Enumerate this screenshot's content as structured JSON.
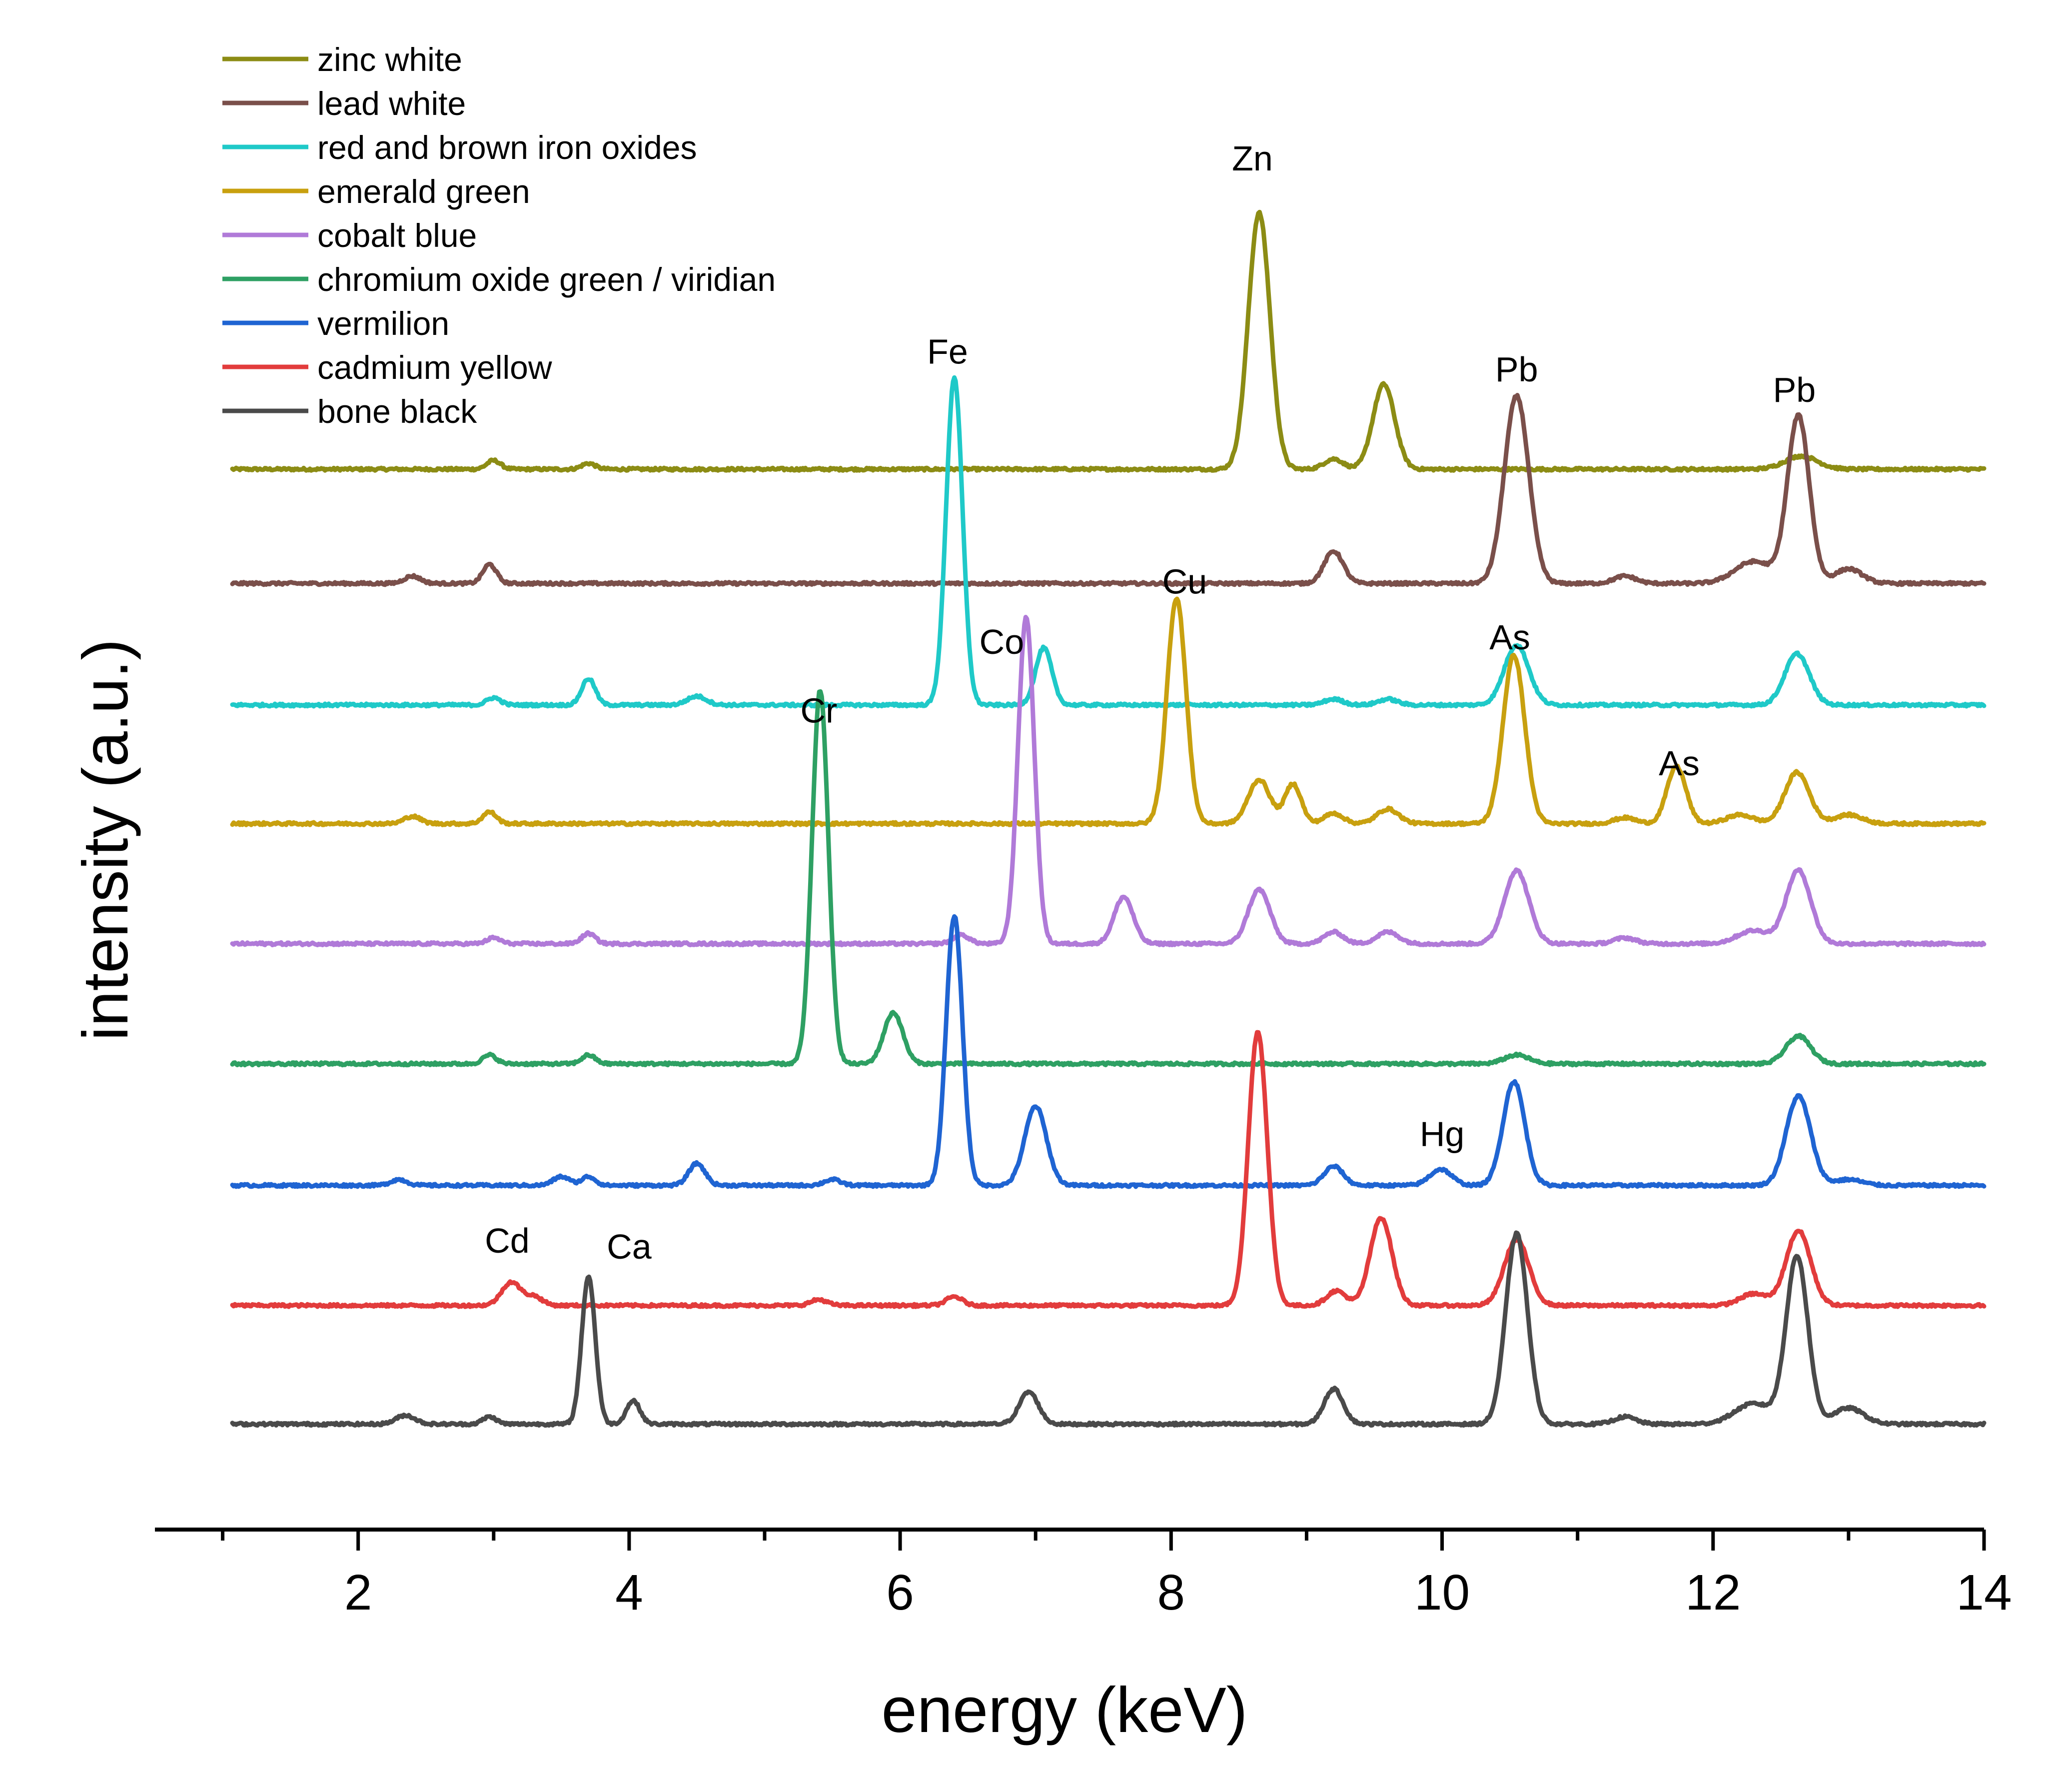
{
  "chart_data": {
    "type": "line",
    "title": "",
    "xlabel": "energy (keV)",
    "ylabel": "intensity (a.u.)",
    "xlim": [
      0.5,
      14
    ],
    "ylim": [
      0,
      100
    ],
    "x_ticks": [
      2,
      4,
      6,
      8,
      10,
      12,
      14
    ],
    "x_tick_labels": [
      "2",
      "4",
      "6",
      "8",
      "10",
      "12",
      "14"
    ],
    "y_ticks_shown": false,
    "legend_position": "top-left",
    "series": [
      {
        "name": "zinc white",
        "color": "#8c8c14",
        "baseline": 72.4,
        "scale": 1.0,
        "peaks": [
          [
            3.0,
            0.6,
            0.05
          ],
          [
            3.7,
            0.4,
            0.05
          ],
          [
            8.65,
            17.5,
            0.08
          ],
          [
            9.2,
            0.7,
            0.07
          ],
          [
            9.57,
            5.8,
            0.08
          ],
          [
            12.65,
            0.9,
            0.12
          ]
        ]
      },
      {
        "name": "lead white",
        "color": "#7a4f4a",
        "baseline": 64.6,
        "scale": 1.0,
        "peaks": [
          [
            2.4,
            0.5,
            0.06
          ],
          [
            2.97,
            1.3,
            0.05
          ],
          [
            9.2,
            2.2,
            0.07
          ],
          [
            10.55,
            12.8,
            0.09
          ],
          [
            11.35,
            0.5,
            0.08
          ],
          [
            12.3,
            1.5,
            0.14
          ],
          [
            12.63,
            11.4,
            0.08
          ],
          [
            13.0,
            1.0,
            0.1
          ]
        ]
      },
      {
        "name": "red and brown iron oxides",
        "color": "#1fc9c8",
        "baseline": 56.3,
        "scale": 1.0,
        "peaks": [
          [
            3.0,
            0.5,
            0.05
          ],
          [
            3.7,
            1.8,
            0.05
          ],
          [
            4.5,
            0.6,
            0.07
          ],
          [
            6.4,
            22.4,
            0.06
          ],
          [
            7.06,
            3.9,
            0.06
          ],
          [
            9.2,
            0.4,
            0.07
          ],
          [
            9.6,
            0.4,
            0.07
          ],
          [
            10.55,
            4.1,
            0.09
          ],
          [
            12.62,
            3.5,
            0.09
          ]
        ]
      },
      {
        "name": "emerald green",
        "color": "#c8a00f",
        "baseline": 48.2,
        "scale": 1.0,
        "peaks": [
          [
            2.4,
            0.5,
            0.06
          ],
          [
            2.97,
            0.8,
            0.05
          ],
          [
            8.04,
            15.4,
            0.07
          ],
          [
            8.65,
            3.0,
            0.08
          ],
          [
            8.9,
            2.7,
            0.06
          ],
          [
            9.2,
            0.7,
            0.07
          ],
          [
            9.6,
            1.0,
            0.08
          ],
          [
            10.53,
            11.5,
            0.08
          ],
          [
            11.35,
            0.4,
            0.08
          ],
          [
            11.73,
            3.9,
            0.07
          ],
          [
            12.2,
            0.6,
            0.1
          ],
          [
            12.62,
            3.5,
            0.09
          ],
          [
            13.0,
            0.6,
            0.1
          ]
        ]
      },
      {
        "name": "cobalt blue",
        "color": "#b07ad8",
        "baseline": 40.0,
        "scale": 1.0,
        "peaks": [
          [
            3.0,
            0.4,
            0.05
          ],
          [
            3.7,
            0.7,
            0.05
          ],
          [
            6.45,
            0.6,
            0.06
          ],
          [
            6.93,
            22.3,
            0.06
          ],
          [
            7.65,
            3.2,
            0.07
          ],
          [
            8.65,
            3.7,
            0.08
          ],
          [
            9.2,
            0.8,
            0.07
          ],
          [
            9.6,
            0.8,
            0.08
          ],
          [
            10.55,
            5.0,
            0.09
          ],
          [
            11.35,
            0.4,
            0.08
          ],
          [
            12.3,
            0.9,
            0.12
          ],
          [
            12.63,
            5.0,
            0.09
          ]
        ]
      },
      {
        "name": "chromium oxide green / viridian",
        "color": "#2ea063",
        "baseline": 31.8,
        "scale": 1.0,
        "peaks": [
          [
            2.97,
            0.6,
            0.05
          ],
          [
            3.7,
            0.6,
            0.05
          ],
          [
            5.41,
            25.5,
            0.06
          ],
          [
            5.95,
            3.5,
            0.07
          ],
          [
            10.55,
            0.6,
            0.09
          ],
          [
            12.63,
            1.9,
            0.09
          ]
        ]
      },
      {
        "name": "vermilion",
        "color": "#1f64d2",
        "baseline": 23.5,
        "scale": 1.0,
        "peaks": [
          [
            2.3,
            0.4,
            0.06
          ],
          [
            3.5,
            0.6,
            0.06
          ],
          [
            3.7,
            0.6,
            0.05
          ],
          [
            4.5,
            1.5,
            0.06
          ],
          [
            5.5,
            0.4,
            0.06
          ],
          [
            6.4,
            18.4,
            0.06
          ],
          [
            7.0,
            5.4,
            0.08
          ],
          [
            9.2,
            1.3,
            0.07
          ],
          [
            9.99,
            1.1,
            0.08
          ],
          [
            10.53,
            7.1,
            0.08
          ],
          [
            12.63,
            6.1,
            0.09
          ],
          [
            13.0,
            0.4,
            0.1
          ]
        ]
      },
      {
        "name": "cadmium yellow",
        "color": "#e23c3c",
        "baseline": 15.3,
        "scale": 1.0,
        "peaks": [
          [
            3.13,
            1.6,
            0.07
          ],
          [
            3.3,
            0.6,
            0.06
          ],
          [
            5.4,
            0.4,
            0.06
          ],
          [
            6.4,
            0.6,
            0.06
          ],
          [
            8.64,
            18.7,
            0.07
          ],
          [
            9.22,
            1.0,
            0.07
          ],
          [
            9.55,
            6.0,
            0.08
          ],
          [
            10.55,
            4.5,
            0.09
          ],
          [
            12.3,
            0.8,
            0.1
          ],
          [
            12.63,
            5.1,
            0.09
          ]
        ]
      },
      {
        "name": "bone black",
        "color": "#4a4a4a",
        "baseline": 7.2,
        "scale": 1.0,
        "peaks": [
          [
            2.35,
            0.6,
            0.07
          ],
          [
            2.97,
            0.5,
            0.05
          ],
          [
            3.7,
            10.1,
            0.05
          ],
          [
            4.03,
            1.6,
            0.05
          ],
          [
            6.95,
            2.2,
            0.07
          ],
          [
            9.2,
            2.4,
            0.07
          ],
          [
            10.55,
            13.0,
            0.08
          ],
          [
            11.35,
            0.5,
            0.08
          ],
          [
            12.3,
            1.4,
            0.14
          ],
          [
            12.62,
            11.4,
            0.08
          ],
          [
            13.0,
            1.1,
            0.11
          ]
        ]
      }
    ],
    "annotations": [
      {
        "text": "Zn",
        "x": 8.6,
        "y": 92.8
      },
      {
        "text": "Fe",
        "x": 6.35,
        "y": 79.6
      },
      {
        "text": "Pb",
        "x": 10.55,
        "y": 78.4
      },
      {
        "text": "Pb",
        "x": 12.6,
        "y": 77.0
      },
      {
        "text": "Cu",
        "x": 8.1,
        "y": 63.9
      },
      {
        "text": "Co",
        "x": 6.75,
        "y": 59.8
      },
      {
        "text": "As",
        "x": 10.5,
        "y": 60.1
      },
      {
        "text": "Cr",
        "x": 5.4,
        "y": 55.1
      },
      {
        "text": "As",
        "x": 11.75,
        "y": 51.5
      },
      {
        "text": "Hg",
        "x": 10.0,
        "y": 26.2
      },
      {
        "text": "Cd",
        "x": 3.1,
        "y": 18.9
      },
      {
        "text": "Ca",
        "x": 4.0,
        "y": 18.5
      }
    ]
  }
}
